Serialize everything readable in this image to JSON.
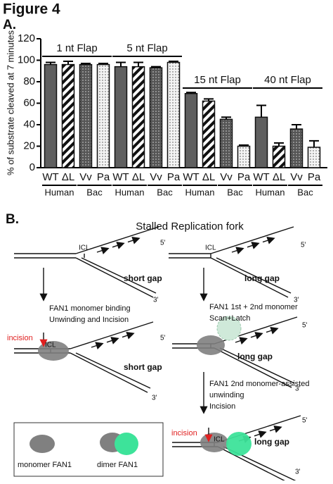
{
  "figure_title": "Figure 4",
  "panel_a_label": "A.",
  "chart_data": {
    "type": "bar",
    "y_label": "% of substrate cleaved at 7 minutes",
    "categories": [
      "WT",
      "ΔL",
      "Vv",
      "Pa",
      "WT",
      "ΔL",
      "Vv",
      "Pa",
      "WT",
      "ΔL",
      "Vv",
      "Pa",
      "WT",
      "ΔL",
      "Vv",
      "Pa"
    ],
    "groups": [
      "1 nt Flap",
      "5 nt Flap",
      "15 nt Flap",
      "40 nt Flap"
    ],
    "subgroups": [
      "Human",
      "Bac",
      "Human",
      "Bac",
      "Human",
      "Bac",
      "Human",
      "Bac"
    ],
    "values": [
      96,
      96,
      96,
      96,
      94,
      94,
      93,
      98,
      69,
      62,
      45,
      20,
      47,
      20,
      36,
      19
    ],
    "errors": [
      2,
      3,
      1,
      1,
      4,
      4,
      1,
      1,
      1,
      2,
      2,
      1,
      11,
      3,
      4,
      6
    ],
    "color": "#5f5f5f",
    "ylim": [
      0,
      120
    ],
    "yticks": [
      0,
      20,
      40,
      60,
      80,
      100,
      120
    ]
  },
  "panel_b": {
    "label": "B.",
    "title": "Stalled Replication fork",
    "fork1": {
      "icl": "ICL",
      "five": "5'",
      "three": "3'",
      "gap": "short gap"
    },
    "fork2": {
      "icl": "ICL",
      "five": "5'",
      "three": "3'",
      "gap": "long gap"
    },
    "step1": [
      "FAN1 monomer binding",
      "Unwinding and Incision"
    ],
    "step2": [
      "FAN1 1st + 2nd monomer",
      "Scan+Latch"
    ],
    "fork3": {
      "incision": "incision",
      "icl": "ICL",
      "five": "5'",
      "three": "3'",
      "gap": "short gap"
    },
    "fork4": {
      "five": "5'",
      "three": "3'",
      "gap": "long gap"
    },
    "step3": [
      "FAN1 2nd monomer-assisted",
      "unwinding",
      "Incision"
    ],
    "fork5": {
      "incision": "incision",
      "icl": "ICL",
      "five": "5'",
      "three": "3'",
      "gap": "long gap"
    },
    "legend": [
      "monomer FAN1",
      "dimer FAN1"
    ]
  }
}
